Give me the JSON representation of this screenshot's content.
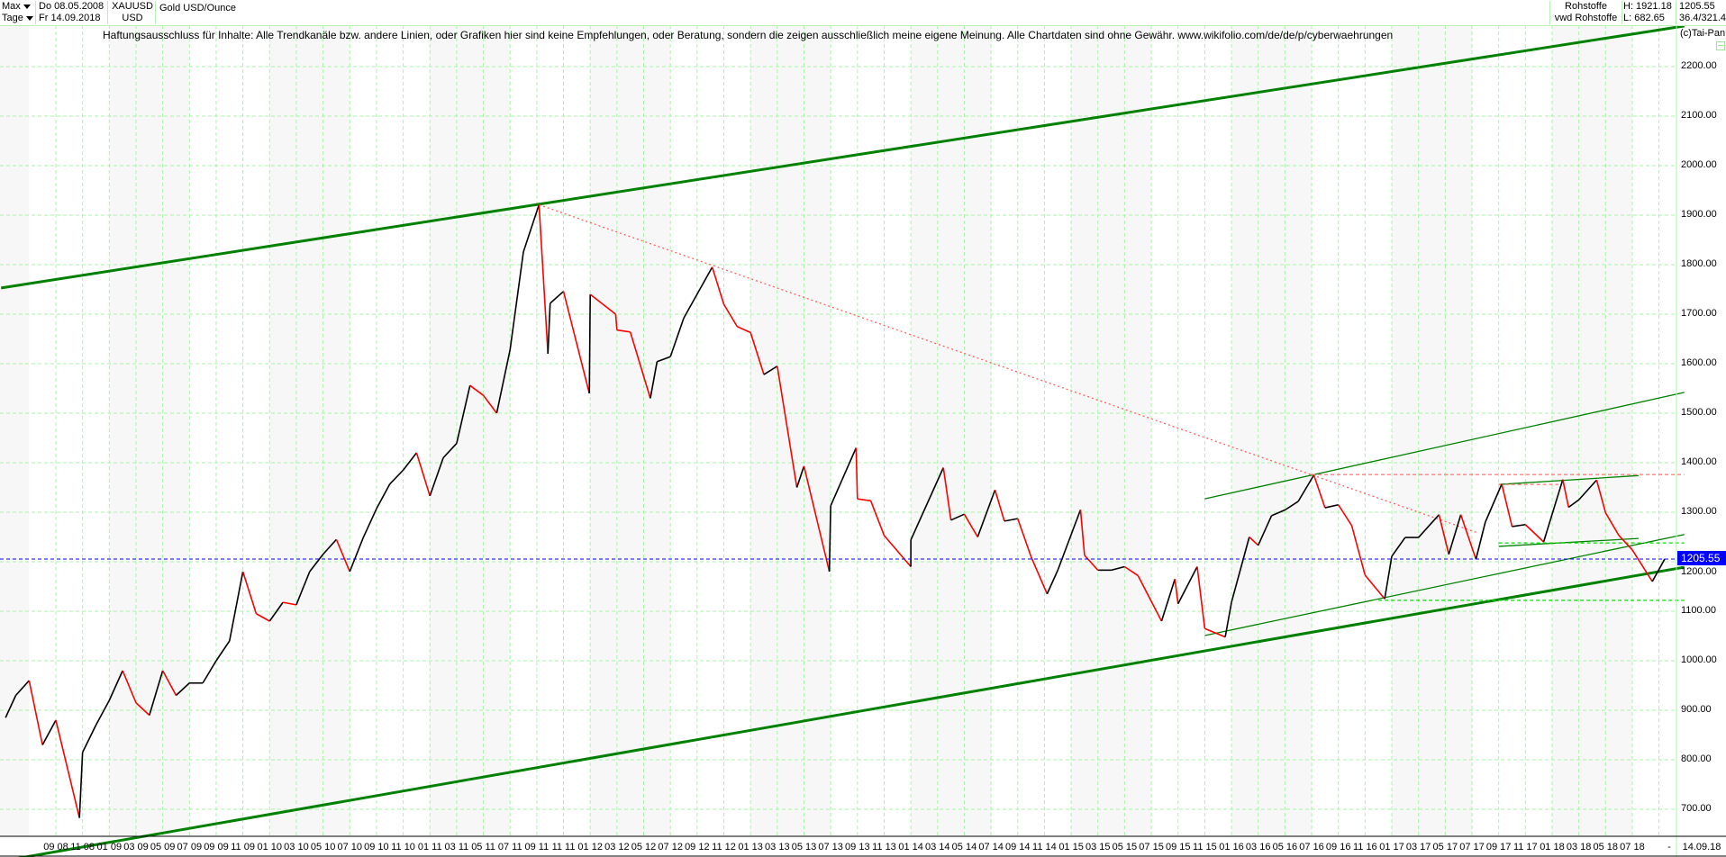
{
  "header": {
    "period": "Max",
    "interval": "Tage",
    "date_from": "Do 08.05.2008",
    "date_to": "Fr 14.09.2018",
    "symbol": "XAUUSD",
    "currency": "USD",
    "name": "Gold USD/Ounce",
    "group": "Rohstoffe",
    "source": "vwd Rohstoffe",
    "high": "H: 1921.18",
    "low": "L: 682.65",
    "last": "1205.55",
    "range": "36.4/321.4"
  },
  "disclaimer": "Haftungsausschluss für Inhalte: Alle Trendkanäle bzw. andere Linien, oder Grafiken hier sind keine Empfehlungen, oder Beratung, sondern die zeigen ausschließlich meine eigene Meinung. Alle Chartdaten sind ohne Gewähr.  www.wikifolio.com/de/de/p/cyberwaehrungen",
  "copyright": "(c)Tai-Pan",
  "x_axis_end": {
    "dash": "-",
    "date": "14.09.18"
  },
  "colors": {
    "grid": "#a8f5a8",
    "up": "#000000",
    "down": "#ff0000",
    "trend": "#008000",
    "current": "#0000ff",
    "band": "#f7f7f7"
  },
  "chart_data": {
    "type": "line",
    "title": "Gold USD/Ounce",
    "xlabel": "",
    "ylabel": "",
    "ylim": [
      600,
      2300
    ],
    "grid": true,
    "x_tick_labels": [
      "09 08",
      "11 08",
      "01 09",
      "03 09",
      "05 09",
      "07 09",
      "09 09",
      "11 09",
      "01 10",
      "03 10",
      "05 10",
      "07 10",
      "09 10",
      "11 10",
      "01 11",
      "03 11",
      "05 11",
      "07 11",
      "09 11",
      "11 11",
      "01 12",
      "03 12",
      "05 12",
      "07 12",
      "09 12",
      "11 12",
      "01 13",
      "03 13",
      "05 13",
      "07 13",
      "09 13",
      "11 13",
      "01 14",
      "03 14",
      "05 14",
      "07 14",
      "09 14",
      "11 14",
      "01 15",
      "03 15",
      "05 15",
      "07 15",
      "09 15",
      "11 15",
      "01 16",
      "03 16",
      "05 16",
      "07 16",
      "09 16",
      "11 16",
      "01 17",
      "03 17",
      "05 17",
      "07 17",
      "09 17",
      "11 17",
      "01 18",
      "03 18",
      "05 18",
      "07 18"
    ],
    "y_tick_labels": [
      "2200.00",
      "2100.00",
      "2000.00",
      "1900.00",
      "1800.00",
      "1700.00",
      "1600.00",
      "1500.00",
      "1400.00",
      "1300.00",
      "1200.00",
      "1100.00",
      "1000.00",
      "900.00",
      "800.00",
      "700.00"
    ],
    "y_ticks": [
      2200,
      2100,
      2000,
      1900,
      1800,
      1700,
      1600,
      1500,
      1400,
      1300,
      1200,
      1100,
      1000,
      900,
      800,
      700
    ],
    "current_price": 1205.55,
    "series": [
      {
        "dates": [
          "2008-05-08",
          "2008-06-01",
          "2008-07-01",
          "2008-08-01",
          "2008-09-01",
          "2008-10-24",
          "2008-11-01",
          "2008-12-01",
          "2009-01-01",
          "2009-02-01",
          "2009-03-01",
          "2009-04-01",
          "2009-05-01",
          "2009-06-01",
          "2009-07-01",
          "2009-08-01",
          "2009-09-01",
          "2009-10-01",
          "2009-11-01",
          "2009-12-01",
          "2010-01-01",
          "2010-02-01",
          "2010-03-01",
          "2010-04-01",
          "2010-05-01",
          "2010-06-01",
          "2010-07-01",
          "2010-08-01",
          "2010-09-01",
          "2010-10-01",
          "2010-11-01",
          "2010-12-01",
          "2011-01-01",
          "2011-02-01",
          "2011-03-01",
          "2011-04-01",
          "2011-05-01",
          "2011-06-01",
          "2011-07-01",
          "2011-08-01",
          "2011-09-06",
          "2011-09-26",
          "2011-10-01",
          "2011-11-01",
          "2011-12-29",
          "2012-01-01",
          "2012-02-28",
          "2012-03-01",
          "2012-04-01",
          "2012-05-16",
          "2012-06-01",
          "2012-07-01",
          "2012-08-01",
          "2012-10-05",
          "2012-11-01",
          "2012-12-01",
          "2013-01-01",
          "2013-02-01",
          "2013-03-01",
          "2013-04-15",
          "2013-05-01",
          "2013-06-28",
          "2013-07-01",
          "2013-08-28",
          "2013-09-01",
          "2013-10-01",
          "2013-11-01",
          "2013-12-31",
          "2014-01-01",
          "2014-03-14",
          "2014-04-01",
          "2014-05-01",
          "2014-06-01",
          "2014-07-10",
          "2014-08-01",
          "2014-09-01",
          "2014-10-01",
          "2014-11-07",
          "2014-12-01",
          "2015-01-22",
          "2015-02-01",
          "2015-03-01",
          "2015-04-01",
          "2015-05-01",
          "2015-06-01",
          "2015-07-24",
          "2015-08-24",
          "2015-09-01",
          "2015-10-14",
          "2015-11-01",
          "2015-12-17",
          "2016-01-01",
          "2016-02-11",
          "2016-03-01",
          "2016-04-01",
          "2016-05-02",
          "2016-06-01",
          "2016-07-06",
          "2016-08-01",
          "2016-09-01",
          "2016-10-01",
          "2016-11-01",
          "2016-12-15",
          "2017-01-01",
          "2017-02-01",
          "2017-03-01",
          "2017-04-17",
          "2017-05-09",
          "2017-06-06",
          "2017-07-10",
          "2017-08-01",
          "2017-09-08",
          "2017-10-01",
          "2017-11-01",
          "2017-12-12",
          "2018-01-25",
          "2018-02-08",
          "2018-03-01",
          "2018-04-11",
          "2018-05-01",
          "2018-06-01",
          "2018-07-01",
          "2018-08-16",
          "2018-09-14"
        ],
        "close": [
          885,
          930,
          960,
          830,
          880,
          682.65,
          815,
          870,
          920,
          980,
          915,
          890,
          980,
          930,
          955,
          955,
          1000,
          1040,
          1180,
          1095,
          1080,
          1118,
          1113,
          1180,
          1215,
          1245,
          1180,
          1248,
          1307,
          1357,
          1385,
          1420,
          1333,
          1410,
          1439,
          1556,
          1536,
          1500,
          1628,
          1826,
          1921.18,
          1620,
          1722,
          1746,
          1540,
          1740,
          1700,
          1668,
          1664,
          1530,
          1604,
          1614,
          1692,
          1795,
          1720,
          1675,
          1663,
          1578,
          1595,
          1350,
          1393,
          1180,
          1313,
          1430,
          1327,
          1323,
          1253,
          1190,
          1244,
          1390,
          1284,
          1296,
          1250,
          1345,
          1282,
          1287,
          1210,
          1135,
          1183,
          1305,
          1213,
          1183,
          1183,
          1190,
          1172,
          1080,
          1165,
          1115,
          1190,
          1065,
          1048,
          1118,
          1250,
          1233,
          1293,
          1305,
          1322,
          1375,
          1309,
          1315,
          1273,
          1173,
          1125,
          1211,
          1249,
          1249,
          1295,
          1215,
          1295,
          1205,
          1280,
          1357,
          1271,
          1275,
          1240,
          1366,
          1310,
          1325,
          1365,
          1299,
          1253,
          1224,
          1160,
          1205.55
        ]
      }
    ],
    "trendlines": [
      {
        "style": "thick",
        "color": "#008000",
        "from": {
          "date": "2008-04-28",
          "price": 1753
        },
        "to": {
          "date": "2018-10-28",
          "price": 2282
        }
      },
      {
        "style": "thick",
        "color": "#008000",
        "from": {
          "date": "2008-04-28",
          "price": 595
        },
        "to": {
          "date": "2018-10-28",
          "price": 1189
        }
      },
      {
        "style": "thin",
        "color": "#008000",
        "from": {
          "date": "2015-11-01",
          "price": 1327
        },
        "to": {
          "date": "2018-10-28",
          "price": 1542
        }
      },
      {
        "style": "thin",
        "color": "#008000",
        "from": {
          "date": "2015-11-01",
          "price": 1051
        },
        "to": {
          "date": "2018-10-28",
          "price": 1255
        }
      },
      {
        "style": "thin",
        "color": "#008000",
        "from": {
          "date": "2017-09-01",
          "price": 1356
        },
        "to": {
          "date": "2018-07-15",
          "price": 1374
        }
      },
      {
        "style": "thin",
        "color": "#008000",
        "from": {
          "date": "2017-09-01",
          "price": 1231
        },
        "to": {
          "date": "2018-07-15",
          "price": 1247
        }
      },
      {
        "style": "dotted",
        "color": "#ff6060",
        "from": {
          "date": "2011-09-06",
          "price": 1921
        },
        "to": {
          "date": "2017-07-15",
          "price": 1258
        }
      },
      {
        "style": "dashed",
        "color": "#ff8080",
        "from": {
          "date": "2016-07-01",
          "price": 1376
        },
        "to": {
          "date": "2018-10-28",
          "price": 1376
        }
      },
      {
        "style": "dashed",
        "color": "#ff8080",
        "from": {
          "date": "2017-09-01",
          "price": 1356
        },
        "to": {
          "date": "2018-01-15",
          "price": 1356
        }
      },
      {
        "style": "dashed",
        "color": "#00dd00",
        "from": {
          "date": "2016-12-01",
          "price": 1122
        },
        "to": {
          "date": "2018-10-28",
          "price": 1122
        }
      },
      {
        "style": "dashed",
        "color": "#00dd00",
        "from": {
          "date": "2017-09-01",
          "price": 1238
        },
        "to": {
          "date": "2018-10-28",
          "price": 1238
        }
      }
    ]
  }
}
